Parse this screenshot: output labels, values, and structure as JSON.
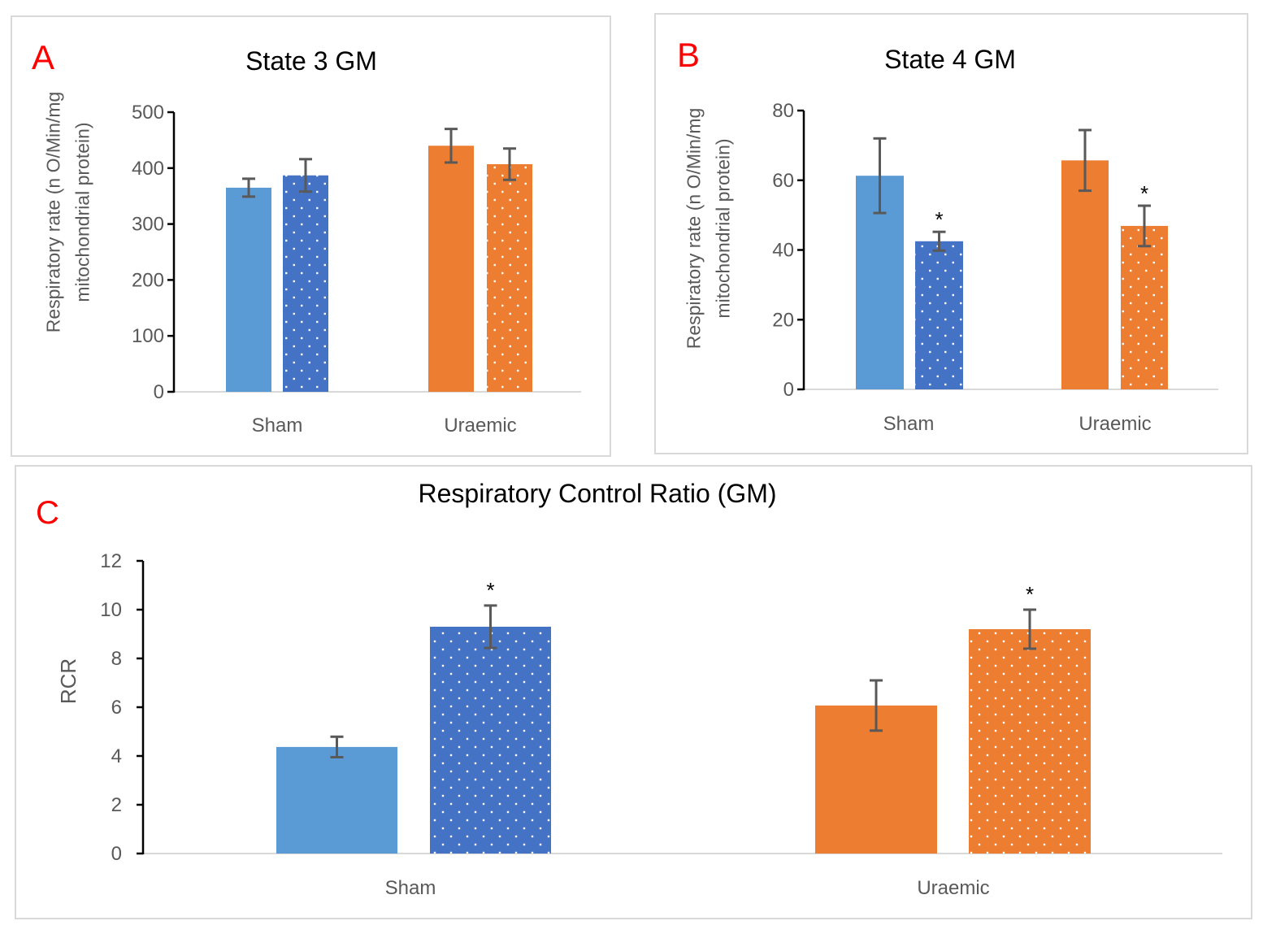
{
  "colors": {
    "sham_solid": "#5B9BD5",
    "sham_dotted": "#4472C4",
    "uraemic_solid": "#ED7D31",
    "uraemic_dotted": "#ED7D31",
    "panel_letter": "#FF0000",
    "error_bar": "#595959",
    "axis": "#000000",
    "baseline": "#d9d9d9",
    "tick_label": "#595959"
  },
  "chart_data": [
    {
      "panel": "A",
      "type": "bar",
      "title": "State 3 GM",
      "ylabel": "Respiratory rate (n O/Min/mg mitochondrial protein)",
      "ylabel_lines": [
        "Respiratory rate (n O/Min/mg",
        "mitochondrial protein)"
      ],
      "xlabel": "",
      "ylim": [
        0,
        500
      ],
      "yticks": [
        0,
        100,
        200,
        300,
        400,
        500
      ],
      "categories": [
        "Sham",
        "Uraemic"
      ],
      "series": [
        {
          "name": "solid",
          "pattern": "solid",
          "values": [
            365,
            440
          ],
          "errors": [
            16,
            30
          ],
          "significant": [
            false,
            false
          ]
        },
        {
          "name": "dotted",
          "pattern": "dotted",
          "values": [
            387,
            407
          ],
          "errors": [
            29,
            28
          ],
          "significant": [
            false,
            false
          ]
        }
      ],
      "grid": false,
      "legend": "none"
    },
    {
      "panel": "B",
      "type": "bar",
      "title": "State 4 GM",
      "ylabel": "Respiratory rate (n O/Min/mg mitochondrial protein)",
      "ylabel_lines": [
        "Respiratory rate (n O/Min/mg",
        "mitochondrial protein)"
      ],
      "xlabel": "",
      "ylim": [
        0,
        80
      ],
      "yticks": [
        0,
        20,
        40,
        60,
        80
      ],
      "categories": [
        "Sham",
        "Uraemic"
      ],
      "series": [
        {
          "name": "solid",
          "pattern": "solid",
          "values": [
            61.3,
            65.7
          ],
          "errors": [
            10.7,
            8.7
          ],
          "significant": [
            false,
            false
          ]
        },
        {
          "name": "dotted",
          "pattern": "dotted",
          "values": [
            42.5,
            46.9
          ],
          "errors": [
            2.7,
            5.8
          ],
          "significant": [
            true,
            true
          ]
        }
      ],
      "significance_marker": "*",
      "grid": false,
      "legend": "none"
    },
    {
      "panel": "C",
      "type": "bar",
      "title": "Respiratory Control Ratio (GM)",
      "ylabel": "RCR",
      "ylabel_lines": [
        "RCR"
      ],
      "xlabel": "",
      "ylim": [
        0,
        12
      ],
      "yticks": [
        0,
        2,
        4,
        6,
        8,
        10,
        12
      ],
      "categories": [
        "Sham",
        "Uraemic"
      ],
      "series": [
        {
          "name": "solid",
          "pattern": "solid",
          "values": [
            4.37,
            6.07
          ],
          "errors": [
            0.42,
            1.03
          ],
          "significant": [
            false,
            false
          ]
        },
        {
          "name": "dotted",
          "pattern": "dotted",
          "values": [
            9.3,
            9.2
          ],
          "errors": [
            0.87,
            0.8
          ],
          "significant": [
            true,
            true
          ]
        }
      ],
      "significance_marker": "*",
      "grid": false,
      "legend": "none"
    }
  ]
}
